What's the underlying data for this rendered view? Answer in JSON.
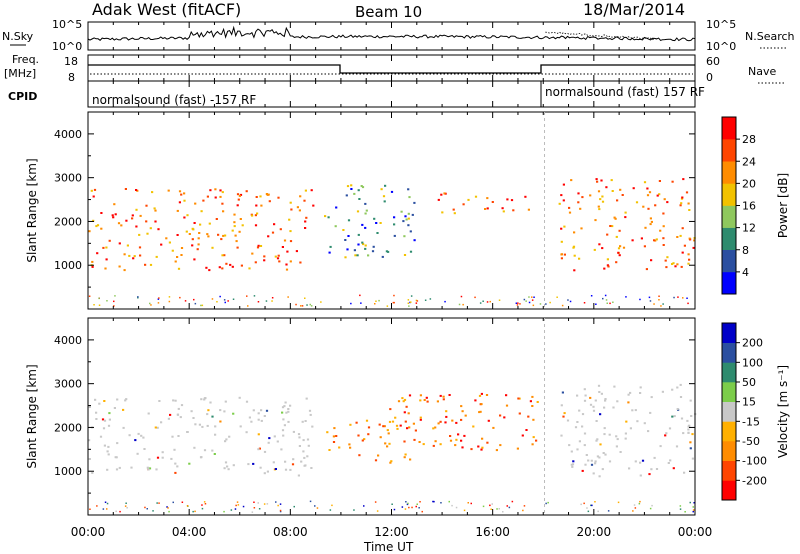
{
  "header": {
    "station": "Adak West (fitACF)",
    "beam": "Beam 10",
    "date": "18/Mar/2014"
  },
  "summary": {
    "nsky_label": "N.Sky",
    "nsearch_label": "N.Search",
    "nsky_ticks": [
      "10^5",
      "10^0"
    ],
    "nsearch_ticks": [
      "10^5",
      "10^0"
    ],
    "freq_label": "Freq.",
    "freq_unit": "[MHz]",
    "freq_ticks": [
      "18",
      "8"
    ],
    "nave_label": "Nave",
    "nave_ticks": [
      "60",
      "0"
    ],
    "cpid_label": "CPID",
    "cpid_text_1": "normalsound (fast) -157 RF",
    "cpid_text_2": "normalsound (fast) 157 RF"
  },
  "chart_data": [
    {
      "type": "heatmap",
      "panel": "power",
      "ylabel": "Slant Range [km]",
      "yticks": [
        "1000",
        "2000",
        "3000",
        "4000"
      ],
      "ylim": [
        0,
        4500
      ],
      "xlim": [
        0,
        24
      ],
      "colorbar_label": "Power [dB]",
      "colorbar_ticks": [
        "4",
        "8",
        "12",
        "16",
        "20",
        "24",
        "28"
      ],
      "colorbar_colors": [
        "#0000ff",
        "#2b4fa0",
        "#2e8b6e",
        "#8fc85e",
        "#f2c200",
        "#ff8c00",
        "#ff4500",
        "#ff0000"
      ],
      "echo_regions": [
        {
          "t0": 0.0,
          "t1": 8.9,
          "r0": 900,
          "r1": 2800,
          "level": "high"
        },
        {
          "t0": 9.3,
          "t1": 13.0,
          "r0": 1200,
          "r1": 2900,
          "level": "low"
        },
        {
          "t0": 13.8,
          "t1": 17.6,
          "r0": 2200,
          "r1": 2700,
          "level": "high"
        },
        {
          "t0": 18.6,
          "t1": 24.0,
          "r0": 900,
          "r1": 3000,
          "level": "high"
        }
      ]
    },
    {
      "type": "heatmap",
      "panel": "velocity",
      "ylabel": "Slant Range [km]",
      "yticks": [
        "1000",
        "2000",
        "3000",
        "4000"
      ],
      "ylim": [
        0,
        4500
      ],
      "xlim": [
        0,
        24
      ],
      "xticks": [
        "00:00",
        "04:00",
        "08:00",
        "12:00",
        "16:00",
        "20:00",
        "00:00"
      ],
      "xlabel": "Time UT",
      "colorbar_label": "Velocity [m s^-1]",
      "colorbar_ticks": [
        "-200",
        "-100",
        "-50",
        "-15",
        "15",
        "50",
        "100",
        "200"
      ],
      "colorbar_colors": [
        "#ff0000",
        "#ff4500",
        "#ff8c00",
        "#ffb000",
        "#c8c8c8",
        "#7ccd4a",
        "#2e8b6e",
        "#2b4fa0",
        "#0000c8"
      ],
      "echo_regions": [
        {
          "t0": 0.0,
          "t1": 8.9,
          "r0": 900,
          "r1": 2700,
          "level": "ground"
        },
        {
          "t0": 9.3,
          "t1": 13.0,
          "r0": 1200,
          "r1": 2200,
          "level": "negative"
        },
        {
          "t0": 11.5,
          "t1": 17.8,
          "r0": 1500,
          "r1": 2800,
          "level": "negative-strong"
        },
        {
          "t0": 18.6,
          "t1": 24.0,
          "r0": 900,
          "r1": 3000,
          "level": "ground"
        }
      ]
    }
  ]
}
